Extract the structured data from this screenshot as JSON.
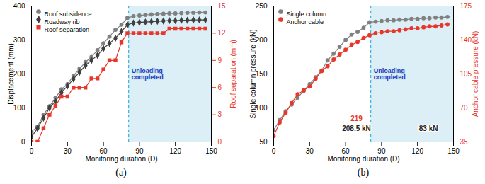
{
  "chart_data": [
    {
      "type": "line",
      "title": "(a)",
      "xlabel": "Monitoring duration (D)",
      "ylabel": "Displacement (mm)",
      "y2label": "Roof separation (mm)",
      "x": [
        0,
        5,
        10,
        15,
        20,
        25,
        30,
        35,
        40,
        45,
        50,
        55,
        60,
        65,
        70,
        75,
        80,
        85,
        90,
        95,
        100,
        105,
        110,
        115,
        120,
        125,
        130,
        135,
        140,
        145
      ],
      "xlim": [
        0,
        150
      ],
      "xticks": [
        0,
        30,
        60,
        90,
        120,
        150
      ],
      "ylim": [
        0,
        400
      ],
      "yticks": [
        0,
        100,
        200,
        300,
        400
      ],
      "y2lim": [
        0,
        15
      ],
      "y2ticks": [
        0,
        3,
        6,
        9,
        12,
        15
      ],
      "grid": false,
      "legend": "top-left",
      "series": [
        {
          "name": "Roof subsidence",
          "color": "#808080",
          "marker": "circle",
          "values": [
            30,
            45,
            80,
            105,
            130,
            155,
            170,
            195,
            215,
            235,
            250,
            270,
            290,
            310,
            330,
            345,
            365,
            370,
            372,
            374,
            375,
            376,
            377,
            378,
            378,
            379,
            380,
            380,
            381,
            381
          ]
        },
        {
          "name": "Roadway rib",
          "color": "#404040",
          "marker": "diamond",
          "values": [
            15,
            40,
            70,
            100,
            120,
            145,
            165,
            185,
            205,
            225,
            240,
            255,
            275,
            290,
            305,
            325,
            345,
            350,
            352,
            353,
            354,
            355,
            356,
            357,
            357,
            358,
            358,
            359,
            359,
            359
          ]
        },
        {
          "name": "Roof separation",
          "color": "#e8372a",
          "marker": "square",
          "axis": "y2",
          "values": [
            0,
            0,
            1.5,
            3,
            4,
            5,
            5,
            6,
            6,
            6,
            7,
            7,
            8,
            9,
            9,
            11,
            12,
            12,
            12,
            12,
            12,
            12,
            12,
            12.5,
            12.5,
            12.5,
            12.5,
            12.5,
            12.5,
            12.5
          ]
        }
      ],
      "annotations": [
        {
          "text": "Unloading completed",
          "x": 81
        }
      ]
    },
    {
      "type": "line",
      "title": "(b)",
      "xlabel": "Monitoring duration (D)",
      "ylabel": "Single column pressure (kN)",
      "y2label": "Anchor cable pressure (kN)",
      "x": [
        0,
        5,
        10,
        15,
        20,
        25,
        30,
        35,
        40,
        45,
        50,
        55,
        60,
        65,
        70,
        75,
        80,
        85,
        90,
        95,
        100,
        105,
        110,
        115,
        120,
        125,
        130,
        135,
        140,
        145
      ],
      "xlim": [
        0,
        150
      ],
      "xticks": [
        0,
        30,
        60,
        90,
        120,
        150
      ],
      "ylim": [
        50,
        250
      ],
      "yticks": [
        50,
        100,
        150,
        200,
        250
      ],
      "y2lim": [
        35,
        175
      ],
      "y2ticks": [
        35,
        70,
        105,
        140,
        175
      ],
      "grid": false,
      "legend": "top-left",
      "series": [
        {
          "name": "Single column",
          "color": "#808080",
          "marker": "circle",
          "values": [
            67,
            82,
            95,
            105,
            115,
            125,
            135,
            145,
            155,
            170,
            180,
            190,
            200,
            208,
            212,
            218,
            226,
            227,
            228,
            229,
            229,
            230,
            230,
            231,
            231,
            232,
            232,
            233,
            233,
            234
          ]
        },
        {
          "name": "Anchor cable",
          "color": "#e8372a",
          "marker": "circle",
          "axis": "y2",
          "values": [
            41,
            55,
            65,
            75,
            84,
            88,
            92,
            100,
            108,
            113,
            120,
            125,
            130,
            135,
            138,
            142,
            145,
            147,
            148,
            149,
            149,
            150,
            151,
            152,
            152,
            153,
            154,
            154,
            155,
            156
          ]
        }
      ],
      "annotations": [
        {
          "text": "Unloading completed",
          "x": 81
        },
        {
          "text": "219"
        },
        {
          "text": "208.5 kN"
        },
        {
          "text": "83 kN"
        }
      ]
    }
  ]
}
